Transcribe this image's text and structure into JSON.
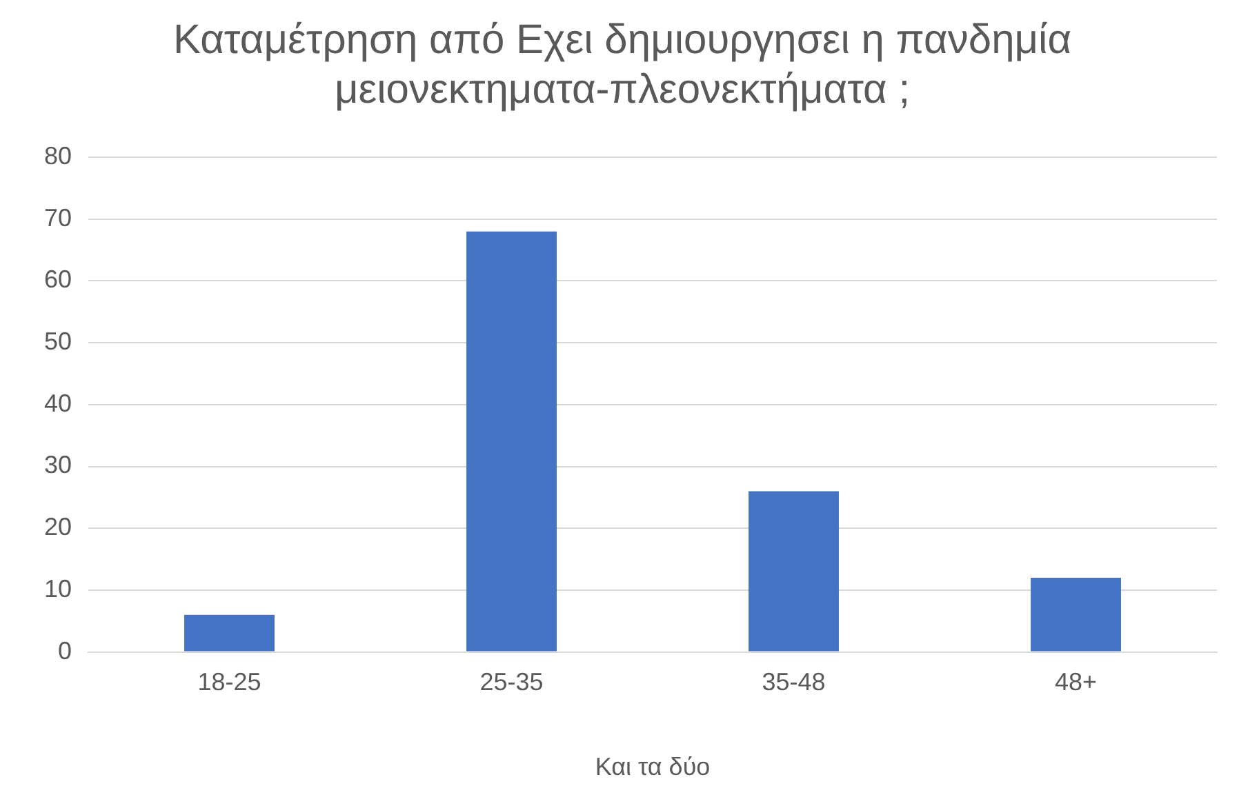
{
  "chart_data": {
    "type": "bar",
    "title": "Καταμέτρηση από Εχει δημιουργησει η πανδημία μειονεκτηματα-πλεονεκτήματα ;",
    "xlabel": "Και τα δύο",
    "categories": [
      "18-25",
      "25-35",
      "35-48",
      "48+"
    ],
    "values": [
      6,
      68,
      26,
      12
    ],
    "color": "#4472c4",
    "ylim": [
      0,
      80
    ],
    "yticks": [
      0,
      10,
      20,
      30,
      40,
      50,
      60,
      70,
      80
    ],
    "grid": "y",
    "legend": false
  }
}
